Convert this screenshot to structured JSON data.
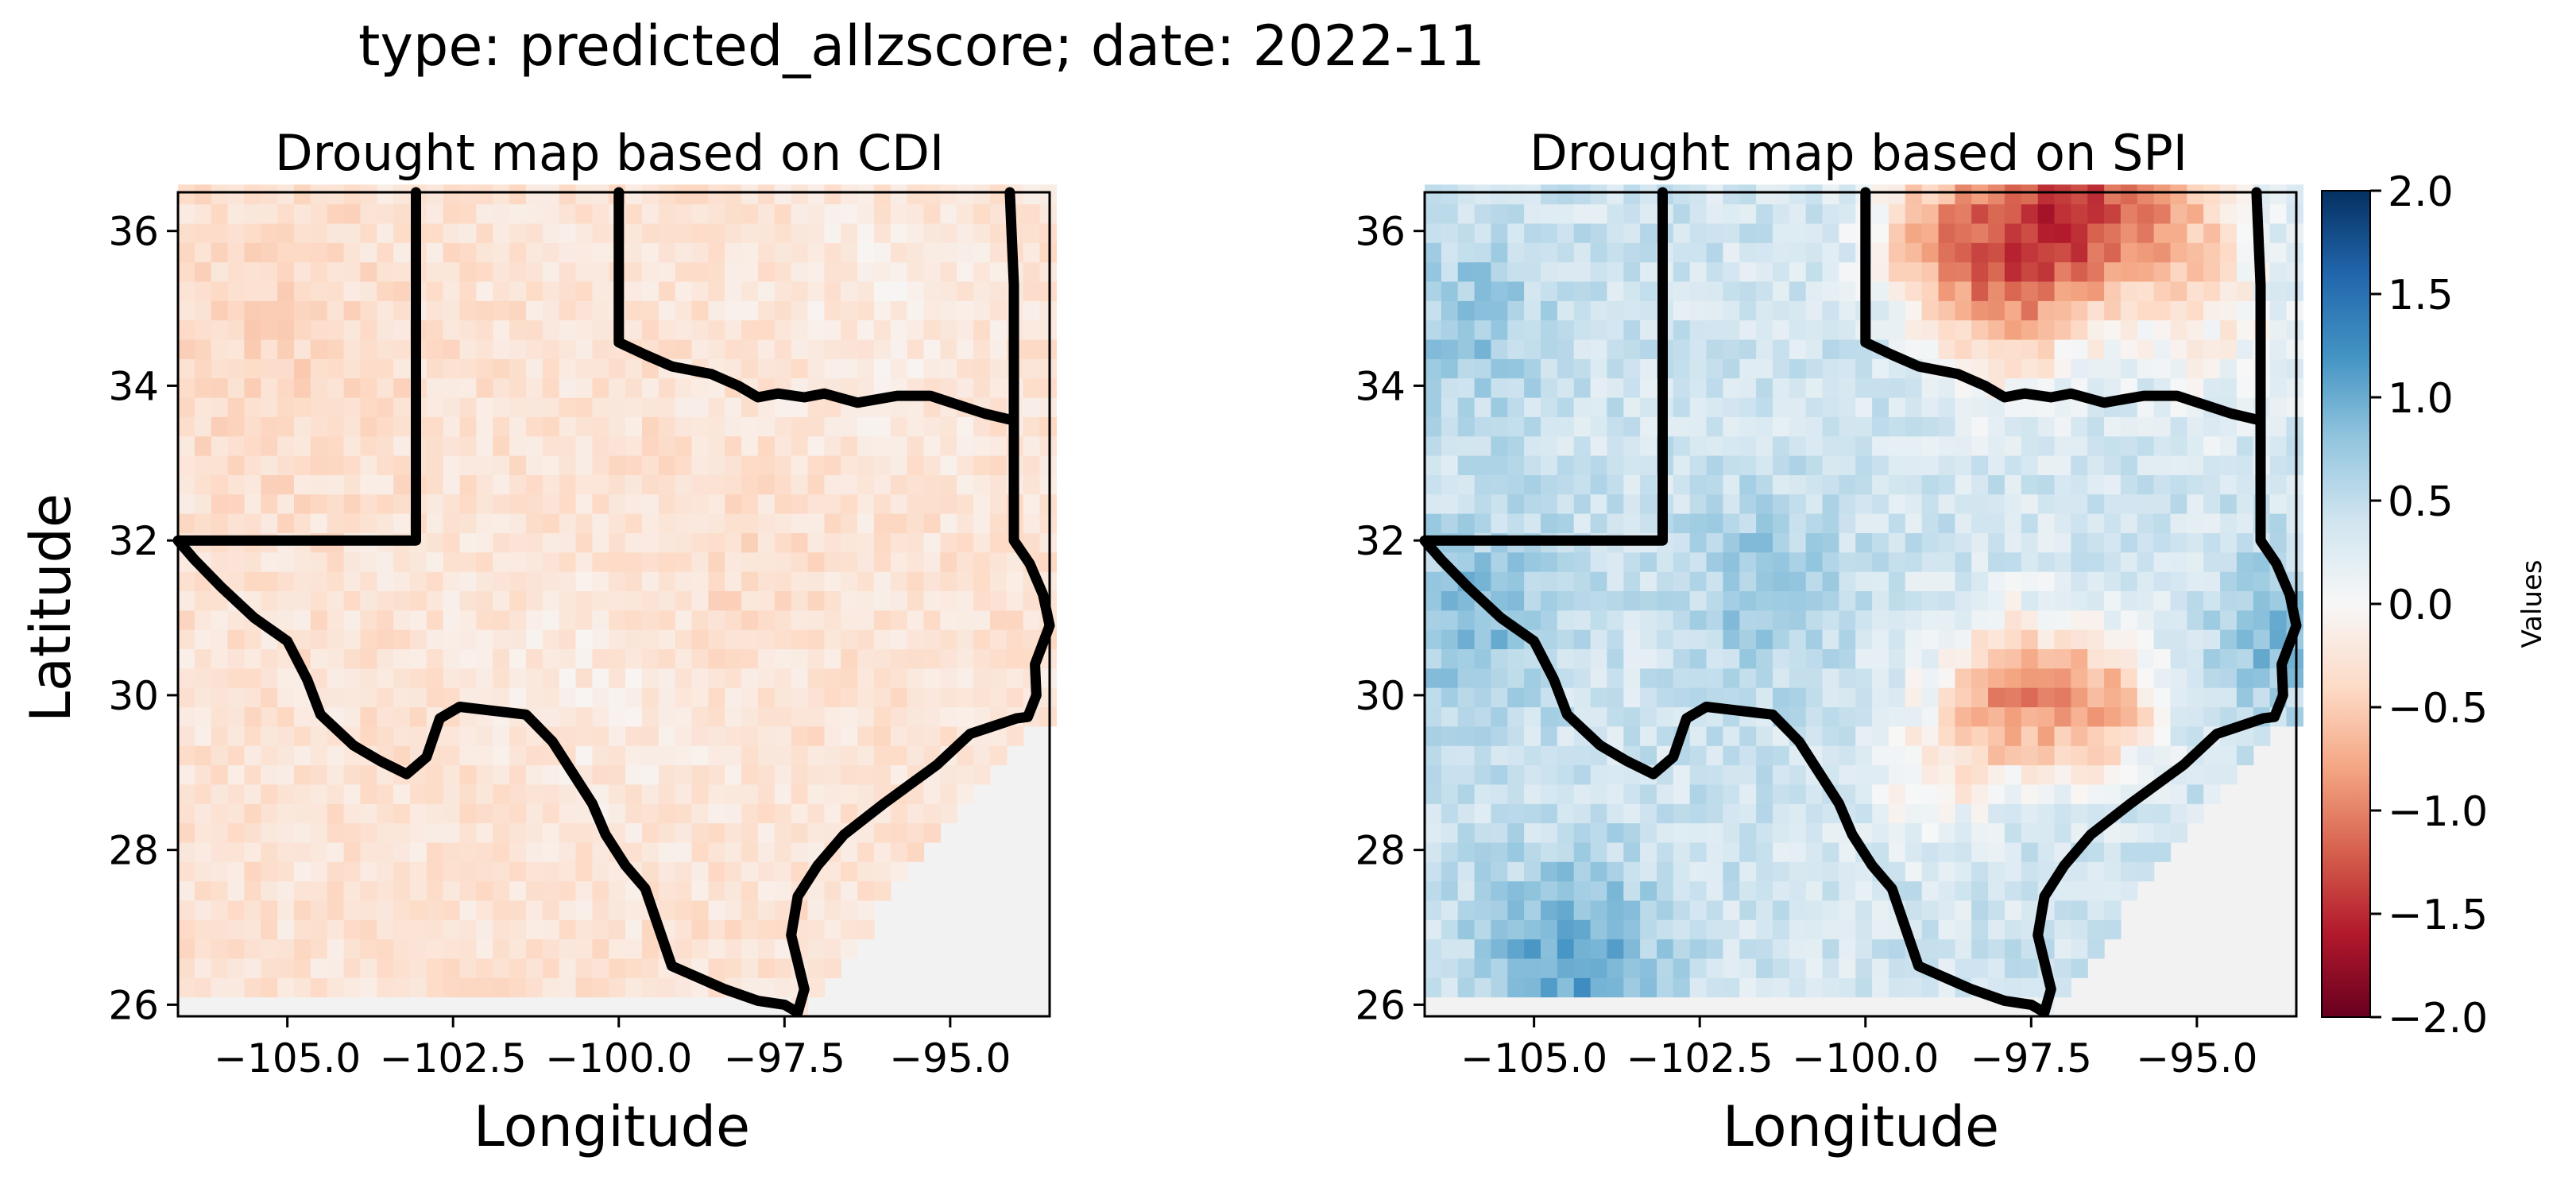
{
  "figure": {
    "suptitle": "type: predicted_allzscore; date: 2022-11"
  },
  "colors": {
    "colormap": "RdBu",
    "nodata": "#f2f2f2",
    "border": "#000000"
  },
  "chart_data": [
    {
      "type": "heatmap",
      "title": "Drought map based on CDI",
      "xlabel": "Longitude",
      "ylabel": "Latitude",
      "xlim": [
        -106.65,
        -93.5
      ],
      "ylim": [
        25.85,
        36.5
      ],
      "xticks": [
        -105.0,
        -102.5,
        -100.0,
        -97.5,
        -95.0
      ],
      "xtick_labels": [
        "−105.0",
        "−102.5",
        "−100.0",
        "−97.5",
        "−95.0"
      ],
      "yticks": [
        26,
        28,
        30,
        32,
        34,
        36
      ],
      "ytick_labels": [
        "26",
        "28",
        "30",
        "32",
        "34",
        "36"
      ],
      "grid": false,
      "cell_size_deg": 0.25,
      "value_summary": "uniformly mild dryness across Texas and neighboring states, values mostly between -0.6 and -0.1",
      "value_field": {
        "base": -0.28,
        "noise": 0.16,
        "anomalies": [
          {
            "lon": -105.5,
            "lat": 34.5,
            "r": 2.0,
            "amp": -0.12
          },
          {
            "lon": -100.0,
            "lat": 30.2,
            "r": 1.8,
            "amp": 0.12
          },
          {
            "lon": -96.0,
            "lat": 34.8,
            "r": 1.8,
            "amp": 0.1
          },
          {
            "lon": -98.5,
            "lat": 31.5,
            "r": 1.5,
            "amp": -0.1
          }
        ]
      }
    },
    {
      "type": "heatmap",
      "title": "Drought map based on SPI",
      "xlabel": "Longitude",
      "ylabel": "",
      "xlim": [
        -106.65,
        -93.5
      ],
      "ylim": [
        25.85,
        36.5
      ],
      "xticks": [
        -105.0,
        -102.5,
        -100.0,
        -97.5,
        -95.0
      ],
      "xtick_labels": [
        "−105.0",
        "−102.5",
        "−100.0",
        "−97.5",
        "−95.0"
      ],
      "yticks": [
        26,
        28,
        30,
        32,
        34,
        36
      ],
      "ytick_labels": [
        "26",
        "28",
        "30",
        "32",
        "34",
        "36"
      ],
      "grid": false,
      "cell_size_deg": 0.25,
      "value_summary": "wet (positive) over most of Texas and the west, dry (negative) band in the north near 36N and a dry patch in central-east Texas",
      "value_field": {
        "base": 0.38,
        "noise": 0.22,
        "anomalies": [
          {
            "lon": -97.2,
            "lat": 36.3,
            "r": 1.3,
            "amp": -1.6
          },
          {
            "lon": -95.5,
            "lat": 36.2,
            "r": 1.3,
            "amp": -1.0
          },
          {
            "lon": -99.0,
            "lat": 36.0,
            "r": 1.0,
            "amp": -0.9
          },
          {
            "lon": -98.0,
            "lat": 34.9,
            "r": 1.1,
            "amp": -0.8
          },
          {
            "lon": -97.8,
            "lat": 30.0,
            "r": 1.0,
            "amp": -1.2
          },
          {
            "lon": -96.4,
            "lat": 29.9,
            "r": 0.9,
            "amp": -1.0
          },
          {
            "lon": -104.5,
            "lat": 26.5,
            "r": 1.4,
            "amp": 0.7
          },
          {
            "lon": -105.9,
            "lat": 31.0,
            "r": 1.3,
            "amp": 0.5
          },
          {
            "lon": -105.9,
            "lat": 34.8,
            "r": 1.2,
            "amp": 0.4
          },
          {
            "lon": -93.8,
            "lat": 30.8,
            "r": 0.9,
            "amp": 0.6
          },
          {
            "lon": -101.5,
            "lat": 31.4,
            "r": 1.2,
            "amp": 0.4
          },
          {
            "lon": -99.0,
            "lat": 29.0,
            "r": 1.0,
            "amp": -0.45
          },
          {
            "lon": -94.5,
            "lat": 34.5,
            "r": 1.2,
            "amp": -0.3
          }
        ]
      }
    }
  ],
  "colorbar": {
    "label": "Values",
    "vmin": -2.0,
    "vmax": 2.0,
    "ticks": [
      2.0,
      1.5,
      1.0,
      0.5,
      0.0,
      -0.5,
      -1.0,
      -1.5,
      -2.0
    ],
    "tick_labels": [
      "2.0",
      "1.5",
      "1.0",
      "0.5",
      "0.0",
      "−0.5",
      "−1.0",
      "−1.5",
      "−2.0"
    ]
  }
}
